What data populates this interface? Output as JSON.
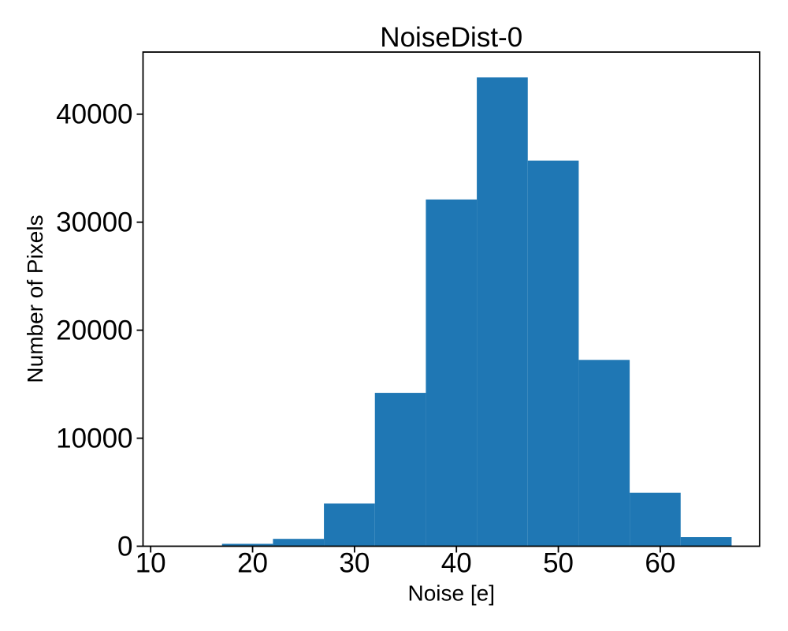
{
  "chart_data": {
    "type": "bar",
    "subtype": "histogram",
    "title": "NoiseDist-0",
    "xlabel": "Noise [e]",
    "ylabel": "Number of Pixels",
    "bin_edges": [
      12,
      17,
      22,
      27,
      32,
      37,
      42,
      47,
      52,
      57,
      62,
      67
    ],
    "counts": [
      10,
      220,
      680,
      3950,
      14200,
      32100,
      43400,
      35700,
      17250,
      4950,
      840
    ],
    "x_ticks": [
      10,
      20,
      30,
      40,
      50,
      60
    ],
    "y_ticks": [
      0,
      10000,
      20000,
      30000,
      40000
    ],
    "xlim": [
      9.25,
      69.75
    ],
    "ylim": [
      0,
      45750
    ],
    "grid": false,
    "legend": "none",
    "bar_color": "#1f77b4",
    "axis_color": "#000000",
    "text_color": "#000000",
    "background_color": "#ffffff"
  }
}
